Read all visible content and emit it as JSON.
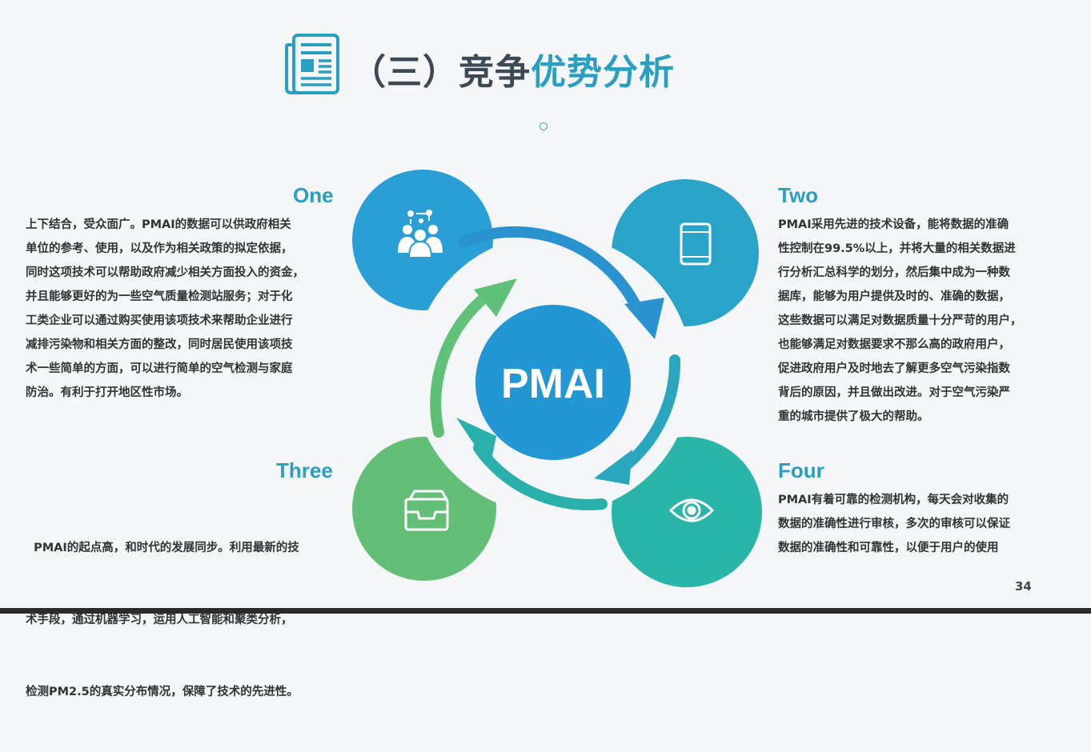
{
  "title": {
    "prefix": "（三）竞争",
    "accent": "优势分析"
  },
  "center_label": "PMAI",
  "sections": {
    "one": {
      "heading": "One",
      "lines": [
        "上下结合，受众面广。PMAI的数据可以供政府相关",
        "单位的参考、使用，以及作为相关政策的拟定依据，",
        "同时这项技术可以帮助政府减少相关方面投入的资金，",
        "并且能够更好的为一些空气质量检测站服务；对于化",
        "工类企业可以通过购买使用该项技术来帮助企业进行",
        "减排污染物和相关方面的整改，同时居民使用该项技",
        "术一些简单的方面，可以进行简单的空气检测与家庭",
        "防治。有利于打开地区性市场。"
      ]
    },
    "two": {
      "heading": "Two",
      "lines": [
        "PMAI采用先进的技术设备，能将数据的准确",
        "性控制在99.5%以上，并将大量的相关数据进",
        "行分析汇总科学的划分，然后集中成为一种数",
        "据库，能够为用户提供及时的、准确的数据，",
        "这些数据可以满足对数据质量十分严苛的用户，",
        "也能够满足对数据要求不那么高的政府用户，",
        "促进政府用户及时地去了解更多空气污染指数",
        "背后的原因，并且做出改进。对于空气污染严",
        "重的城市提供了极大的帮助。"
      ]
    },
    "three": {
      "heading": "Three",
      "lines": [
        "  PMAI的起点高，和时代的发展同步。利用最新的技",
        "术手段，通过机器学习，运用人工智能和聚类分析，",
        "检测PM2.5的真实分布情况，保障了技术的先进性。"
      ]
    },
    "four": {
      "heading": "Four",
      "lines": [
        "PMAI有着可靠的检测机构，每天会对收集的",
        "数据的准确性进行审核，多次的审核可以保证",
        "数据的准确性和可靠性，以便于用户的使用"
      ]
    }
  },
  "icons": {
    "title": "newspaper-icon",
    "one": "team-network-icon",
    "two": "tablet-icon",
    "three": "inbox-tray-icon",
    "four": "eye-icon"
  },
  "colors": {
    "accent": "#2a9fc1",
    "blue_dark": "#2a9fd6",
    "blue_light": "#29a3c7",
    "green": "#63bf78",
    "teal": "#29b6a8",
    "text": "#333333"
  },
  "page_number": "34"
}
